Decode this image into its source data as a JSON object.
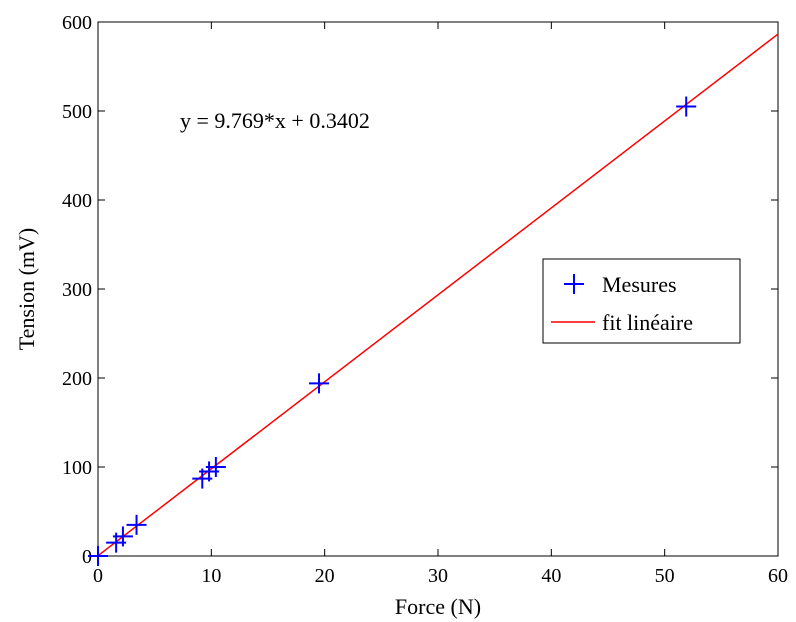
{
  "chart_data": {
    "type": "scatter",
    "xlabel": "Force (N)",
    "ylabel": "Tension (mV)",
    "xlim": [
      0,
      60
    ],
    "ylim": [
      0,
      600
    ],
    "x_ticks": [
      0,
      10,
      20,
      30,
      40,
      50,
      60
    ],
    "y_ticks": [
      0,
      100,
      200,
      300,
      400,
      500,
      600
    ],
    "grid": false,
    "legend_position": "right",
    "annotation": "y = 9.769*x + 0.3402",
    "series": [
      {
        "name": "Mesures",
        "kind": "scatter",
        "marker": "plus",
        "color": "#0000ff",
        "points": [
          {
            "x": 0,
            "y": 0
          },
          {
            "x": 1.6,
            "y": 15
          },
          {
            "x": 2.2,
            "y": 22
          },
          {
            "x": 3.4,
            "y": 35
          },
          {
            "x": 9.2,
            "y": 87
          },
          {
            "x": 9.8,
            "y": 95
          },
          {
            "x": 10.4,
            "y": 100
          },
          {
            "x": 19.5,
            "y": 194
          },
          {
            "x": 51.9,
            "y": 505
          }
        ]
      },
      {
        "name": "fit linéaire",
        "kind": "line",
        "color": "#ff0000",
        "slope": 9.769,
        "intercept": 0.3402,
        "x": [
          0,
          60
        ],
        "y": [
          0.3402,
          586.4802
        ]
      }
    ]
  }
}
